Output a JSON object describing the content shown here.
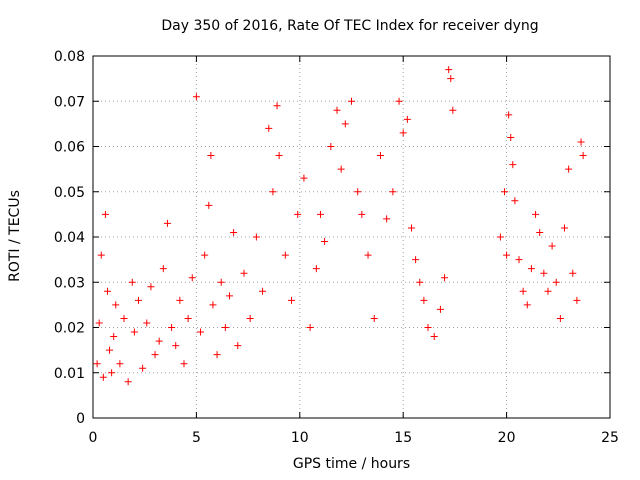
{
  "chart_data": {
    "type": "scatter",
    "title": "Day 350 of 2016, Rate Of TEC Index for receiver dyng",
    "xlabel": "GPS time / hours",
    "ylabel": "ROTI / TECUs",
    "xlim": [
      0,
      25
    ],
    "ylim": [
      0,
      0.08
    ],
    "xticks": [
      "0",
      "5",
      "10",
      "15",
      "20",
      "25"
    ],
    "yticks": [
      "0",
      "0.01",
      "0.02",
      "0.03",
      "0.04",
      "0.05",
      "0.06",
      "0.07",
      "0.08"
    ],
    "grid": true,
    "marker": "+",
    "color": "#ff0000",
    "series": [
      {
        "values": [
          [
            0.2,
            0.012
          ],
          [
            0.3,
            0.021
          ],
          [
            0.4,
            0.036
          ],
          [
            0.5,
            0.009
          ],
          [
            0.6,
            0.045
          ],
          [
            0.7,
            0.028
          ],
          [
            0.8,
            0.015
          ],
          [
            0.9,
            0.01
          ],
          [
            1.0,
            0.018
          ],
          [
            1.1,
            0.025
          ],
          [
            1.3,
            0.012
          ],
          [
            1.5,
            0.022
          ],
          [
            1.7,
            0.008
          ],
          [
            1.9,
            0.03
          ],
          [
            2.0,
            0.019
          ],
          [
            2.2,
            0.026
          ],
          [
            2.4,
            0.011
          ],
          [
            2.6,
            0.021
          ],
          [
            2.8,
            0.029
          ],
          [
            3.0,
            0.014
          ],
          [
            3.2,
            0.017
          ],
          [
            3.4,
            0.033
          ],
          [
            3.6,
            0.043
          ],
          [
            3.8,
            0.02
          ],
          [
            4.0,
            0.016
          ],
          [
            4.2,
            0.026
          ],
          [
            4.4,
            0.012
          ],
          [
            4.6,
            0.022
          ],
          [
            4.8,
            0.031
          ],
          [
            5.0,
            0.071
          ],
          [
            5.2,
            0.019
          ],
          [
            5.4,
            0.036
          ],
          [
            5.6,
            0.047
          ],
          [
            5.7,
            0.058
          ],
          [
            5.8,
            0.025
          ],
          [
            6.0,
            0.014
          ],
          [
            6.2,
            0.03
          ],
          [
            6.4,
            0.02
          ],
          [
            6.6,
            0.027
          ],
          [
            6.8,
            0.041
          ],
          [
            7.0,
            0.016
          ],
          [
            7.3,
            0.032
          ],
          [
            7.6,
            0.022
          ],
          [
            7.9,
            0.04
          ],
          [
            8.2,
            0.028
          ],
          [
            8.5,
            0.064
          ],
          [
            8.7,
            0.05
          ],
          [
            8.9,
            0.069
          ],
          [
            9.0,
            0.058
          ],
          [
            9.3,
            0.036
          ],
          [
            9.6,
            0.026
          ],
          [
            9.9,
            0.045
          ],
          [
            10.2,
            0.053
          ],
          [
            10.5,
            0.02
          ],
          [
            10.8,
            0.033
          ],
          [
            11.0,
            0.045
          ],
          [
            11.2,
            0.039
          ],
          [
            11.5,
            0.06
          ],
          [
            11.8,
            0.068
          ],
          [
            12.0,
            0.055
          ],
          [
            12.2,
            0.065
          ],
          [
            12.5,
            0.07
          ],
          [
            12.8,
            0.05
          ],
          [
            13.0,
            0.045
          ],
          [
            13.3,
            0.036
          ],
          [
            13.6,
            0.022
          ],
          [
            13.9,
            0.058
          ],
          [
            14.2,
            0.044
          ],
          [
            14.5,
            0.05
          ],
          [
            14.8,
            0.07
          ],
          [
            15.0,
            0.063
          ],
          [
            15.2,
            0.066
          ],
          [
            15.4,
            0.042
          ],
          [
            15.6,
            0.035
          ],
          [
            15.8,
            0.03
          ],
          [
            16.0,
            0.026
          ],
          [
            16.2,
            0.02
          ],
          [
            16.5,
            0.018
          ],
          [
            16.8,
            0.024
          ],
          [
            17.0,
            0.031
          ],
          [
            17.2,
            0.077
          ],
          [
            17.3,
            0.075
          ],
          [
            17.4,
            0.068
          ],
          [
            19.7,
            0.04
          ],
          [
            19.9,
            0.05
          ],
          [
            20.0,
            0.036
          ],
          [
            20.1,
            0.067
          ],
          [
            20.2,
            0.062
          ],
          [
            20.3,
            0.056
          ],
          [
            20.4,
            0.048
          ],
          [
            20.6,
            0.035
          ],
          [
            20.8,
            0.028
          ],
          [
            21.0,
            0.025
          ],
          [
            21.2,
            0.033
          ],
          [
            21.4,
            0.045
          ],
          [
            21.6,
            0.041
          ],
          [
            21.8,
            0.032
          ],
          [
            22.0,
            0.028
          ],
          [
            22.2,
            0.038
          ],
          [
            22.4,
            0.03
          ],
          [
            22.6,
            0.022
          ],
          [
            22.8,
            0.042
          ],
          [
            23.0,
            0.055
          ],
          [
            23.2,
            0.032
          ],
          [
            23.4,
            0.026
          ],
          [
            23.6,
            0.061
          ],
          [
            23.7,
            0.058
          ]
        ]
      }
    ]
  }
}
